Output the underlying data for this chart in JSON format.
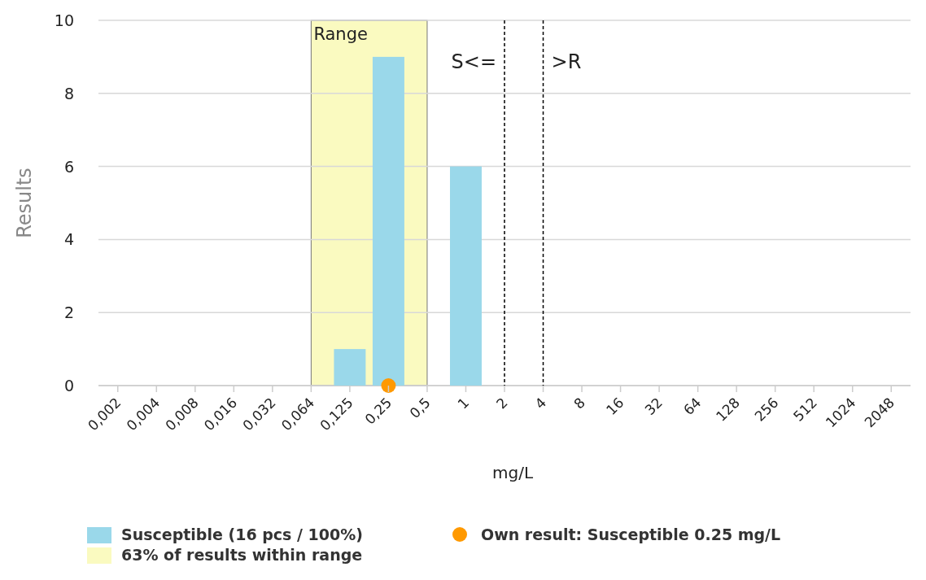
{
  "chart_data": {
    "type": "bar",
    "xlabel": "mg/L",
    "ylabel": "Results",
    "categories": [
      "0,002",
      "0,004",
      "0,008",
      "0,016",
      "0,032",
      "0,064",
      "0,125",
      "0,25",
      "0,5",
      "1",
      "2",
      "4",
      "8",
      "16",
      "32",
      "64",
      "128",
      "256",
      "512",
      "1024",
      "2048"
    ],
    "series": [
      {
        "type": "bar",
        "name": "Susceptible (16 pcs / 100%)",
        "color": "#9ad8ea",
        "values": [
          0,
          0,
          0,
          0,
          0,
          0,
          1,
          9,
          0,
          6,
          0,
          0,
          0,
          0,
          0,
          0,
          0,
          0,
          0,
          0,
          0
        ]
      },
      {
        "type": "scatter",
        "name": "Own result: Susceptible 0.25 mg/L",
        "color": "#ff9900",
        "x": [
          "0,25"
        ],
        "values": [
          0
        ],
        "marker": "circle"
      }
    ],
    "bands": [
      {
        "axis": "x",
        "from": "0,064",
        "to": "0,5",
        "label": "Range",
        "color": "#fafac0"
      }
    ],
    "ref_lines": [
      {
        "axis": "x",
        "value": "2",
        "label": "S<=",
        "line_style": "dashed"
      },
      {
        "axis": "x",
        "value": "4",
        "label": ">R",
        "line_style": "dashed"
      }
    ],
    "annotations": [
      "63% of results within range"
    ],
    "ylim": [
      0,
      10
    ],
    "yticks": [
      0,
      2,
      4,
      6,
      8,
      10
    ],
    "grid": "y",
    "legend": "bottom left"
  }
}
